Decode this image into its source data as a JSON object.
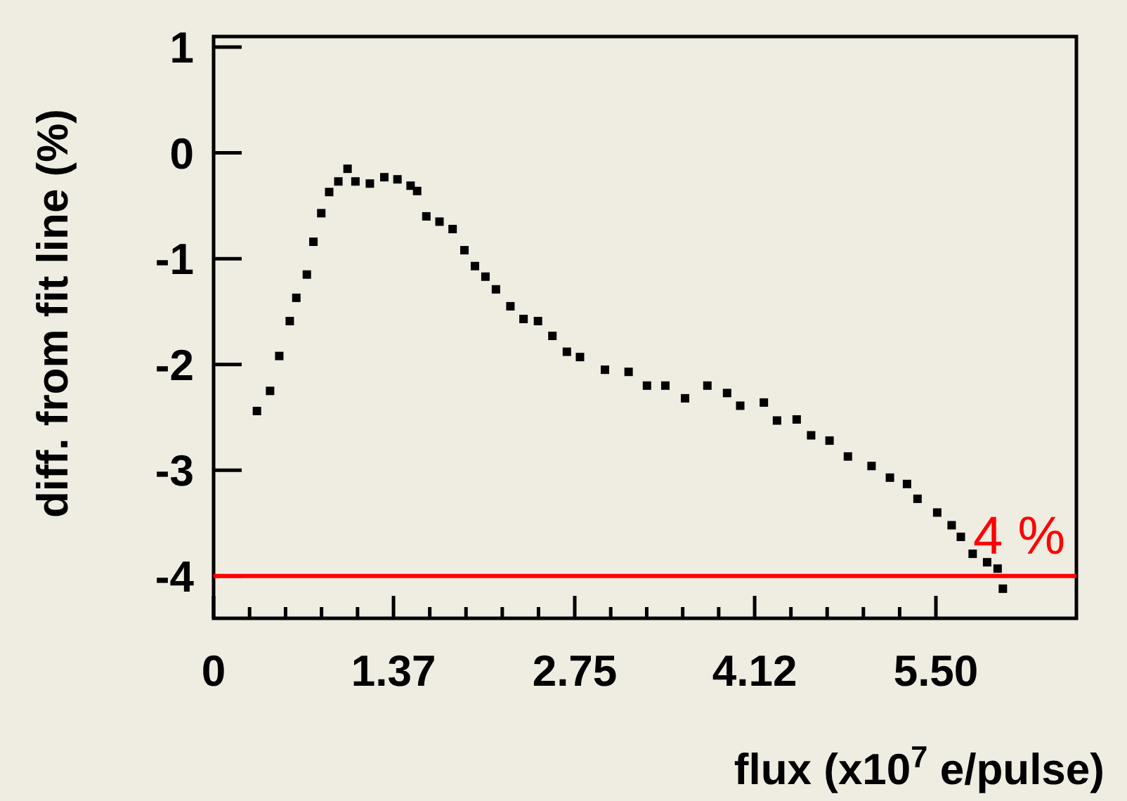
{
  "chart_data": {
    "type": "scatter",
    "xlabel": "flux (x10$^{7}$ e/pulse)",
    "ylabel": "diff. from fit line (%)",
    "xlim": [
      0,
      6.57
    ],
    "ylim": [
      -4.4,
      1.1
    ],
    "xticks": [
      0,
      1.37,
      2.75,
      4.12,
      {
        "value": 5.5,
        "label": "5.50"
      }
    ],
    "yticks": [
      -4,
      -3,
      -2,
      -1,
      0,
      1
    ],
    "marker": "square",
    "grid": false,
    "ref_lines": [
      {
        "axis": "y",
        "value": -4,
        "color": "#ff0000"
      }
    ],
    "annotations": [
      "4 %"
    ],
    "series": [
      {
        "color": "#000000",
        "x": [
          0.33,
          0.43,
          0.5,
          0.58,
          0.63,
          0.71,
          0.76,
          0.82,
          0.88,
          0.95,
          1.02,
          1.08,
          1.19,
          1.3,
          1.4,
          1.5,
          1.55,
          1.62,
          1.72,
          1.82,
          1.91,
          1.99,
          2.07,
          2.15,
          2.26,
          2.36,
          2.47,
          2.58,
          2.69,
          2.79,
          2.98,
          3.16,
          3.3,
          3.44,
          3.59,
          3.76,
          3.91,
          4.01,
          4.19,
          4.29,
          4.44,
          4.55,
          4.69,
          4.83,
          5.01,
          5.15,
          5.28,
          5.36,
          5.51,
          5.62,
          5.69,
          5.78,
          5.89,
          5.97,
          6.01
        ],
        "values": [
          -2.44,
          -2.25,
          -1.92,
          -1.59,
          -1.37,
          -1.15,
          -0.84,
          -0.57,
          -0.37,
          -0.27,
          -0.15,
          -0.27,
          -0.29,
          -0.23,
          -0.25,
          -0.31,
          -0.36,
          -0.6,
          -0.65,
          -0.72,
          -0.92,
          -1.07,
          -1.17,
          -1.29,
          -1.45,
          -1.57,
          -1.59,
          -1.73,
          -1.88,
          -1.93,
          -2.05,
          -2.07,
          -2.2,
          -2.2,
          -2.32,
          -2.2,
          -2.27,
          -2.39,
          -2.36,
          -2.53,
          -2.52,
          -2.67,
          -2.72,
          -2.87,
          -2.96,
          -3.07,
          -3.13,
          -3.27,
          -3.4,
          -3.52,
          -3.63,
          -3.79,
          -3.87,
          -3.93,
          -4.12
        ]
      }
    ]
  }
}
